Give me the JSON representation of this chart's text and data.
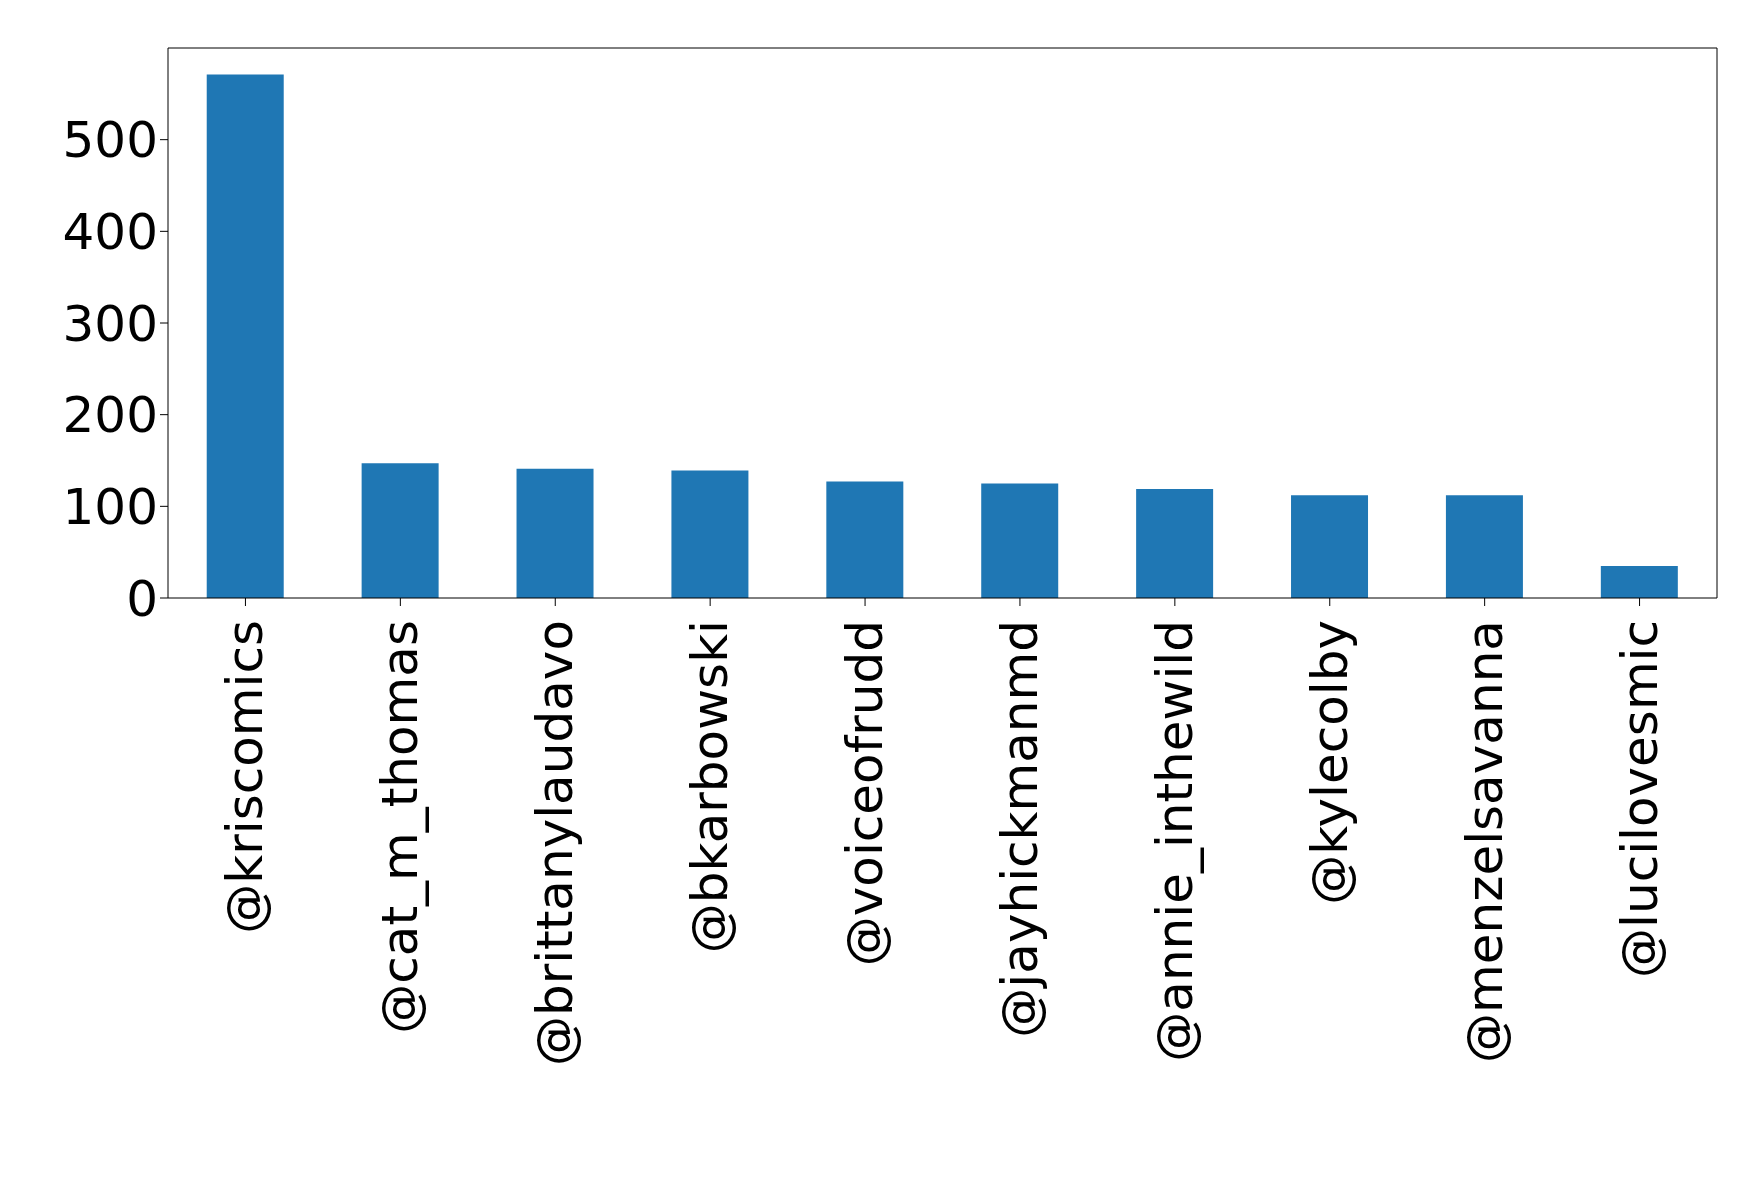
{
  "chart_data": {
    "type": "bar",
    "categories": [
      "@kriscomics",
      "@cat_m_thomas",
      "@brittanylaudavo",
      "@bkarbowski",
      "@voiceofrudd",
      "@jayhickmanmd",
      "@annie_inthewild",
      "@kylecolby",
      "@menzelsavanna",
      "@lucilovesmic"
    ],
    "values": [
      571,
      147,
      141,
      139,
      127,
      125,
      119,
      112,
      112,
      35
    ],
    "color": "#1f77b4",
    "ylim": [
      0,
      600
    ],
    "yticks": [
      0,
      100,
      200,
      300,
      400,
      500
    ],
    "grid": false,
    "legend": false
  }
}
